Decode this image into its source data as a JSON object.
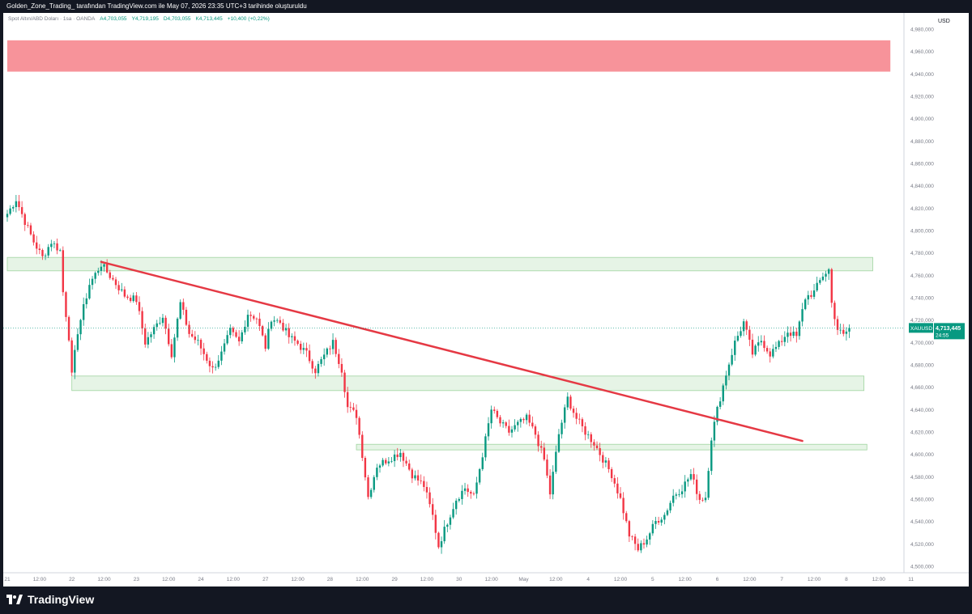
{
  "header": {
    "caption": "Golden_Zone_Trading_ tarafından TradingView.com ile May 07, 2026 23:35 UTC+3 tarihinde oluşturuldu"
  },
  "legend": {
    "symbol": "Spot Altın/ABD Doları · 1sa · OANDA",
    "open": "A4,703,055",
    "high": "Y4,719,195",
    "low": "D4,703,055",
    "close": "K4,713,445",
    "change": "+10,400 (+0,22%)"
  },
  "footer": {
    "brand": "TradingView"
  },
  "colors": {
    "up": "#089981",
    "down": "#f23645",
    "trendline": "#e53944",
    "supply_zone": "#f7939a",
    "demand_zone": "#e6f4e6",
    "demand_zone_border": "#9fd49f",
    "price_tag": "#089981"
  },
  "chart_data": {
    "type": "candlestick",
    "symbol": "XAUUSD",
    "currency": "USD",
    "last_price_label": "4,713,445",
    "countdown_label": "24:55",
    "ylim": [
      4500,
      4990
    ],
    "y_ticks": [
      "4,500,000",
      "4,520,000",
      "4,540,000",
      "4,560,000",
      "4,580,000",
      "4,600,000",
      "4,620,000",
      "4,640,000",
      "4,660,000",
      "4,680,000",
      "4,700,000",
      "4,720,000",
      "4,740,000",
      "4,760,000",
      "4,780,000",
      "4,800,000",
      "4,820,000",
      "4,840,000",
      "4,860,000",
      "4,880,000",
      "4,900,000",
      "4,920,000",
      "4,940,000",
      "4,960,000",
      "4,980,000"
    ],
    "x_ticks": [
      "21",
      "12:00",
      "22",
      "12:00",
      "23",
      "12:00",
      "24",
      "12:00",
      "27",
      "12:00",
      "28",
      "12:00",
      "29",
      "12:00",
      "30",
      "12:00",
      "May",
      "12:00",
      "4",
      "12:00",
      "5",
      "12:00",
      "6",
      "12:00",
      "7",
      "12:00",
      "8",
      "12:00",
      "11"
    ],
    "x_tick_index": [
      0,
      11,
      22,
      33,
      44,
      55,
      66,
      77,
      88,
      99,
      110,
      121,
      132,
      143,
      154,
      165,
      176,
      187,
      198,
      209,
      220,
      231,
      242,
      253,
      264,
      275,
      286,
      297,
      308
    ],
    "close_path": [
      [
        0,
        4815
      ],
      [
        3,
        4828
      ],
      [
        6,
        4808
      ],
      [
        9,
        4790
      ],
      [
        12,
        4776
      ],
      [
        15,
        4790
      ],
      [
        18,
        4782
      ],
      [
        19,
        4745
      ],
      [
        21,
        4705
      ],
      [
        22,
        4670
      ],
      [
        24,
        4710
      ],
      [
        28,
        4752
      ],
      [
        32,
        4770
      ],
      [
        36,
        4756
      ],
      [
        40,
        4742
      ],
      [
        44,
        4738
      ],
      [
        47,
        4700
      ],
      [
        50,
        4712
      ],
      [
        53,
        4724
      ],
      [
        56,
        4690
      ],
      [
        59,
        4735
      ],
      [
        62,
        4708
      ],
      [
        65,
        4700
      ],
      [
        67,
        4690
      ],
      [
        70,
        4676
      ],
      [
        73,
        4690
      ],
      [
        76,
        4710
      ],
      [
        79,
        4700
      ],
      [
        82,
        4726
      ],
      [
        85,
        4722
      ],
      [
        88,
        4696
      ],
      [
        90,
        4722
      ],
      [
        93,
        4718
      ],
      [
        96,
        4705
      ],
      [
        99,
        4699
      ],
      [
        102,
        4690
      ],
      [
        105,
        4675
      ],
      [
        108,
        4688
      ],
      [
        111,
        4700
      ],
      [
        114,
        4676
      ],
      [
        116,
        4642
      ],
      [
        119,
        4635
      ],
      [
        121,
        4600
      ],
      [
        123,
        4562
      ],
      [
        126,
        4590
      ],
      [
        130,
        4596
      ],
      [
        134,
        4602
      ],
      [
        138,
        4582
      ],
      [
        142,
        4572
      ],
      [
        145,
        4545
      ],
      [
        147,
        4518
      ],
      [
        150,
        4540
      ],
      [
        153,
        4560
      ],
      [
        156,
        4570
      ],
      [
        159,
        4562
      ],
      [
        162,
        4600
      ],
      [
        165,
        4640
      ],
      [
        168,
        4628
      ],
      [
        171,
        4620
      ],
      [
        174,
        4627
      ],
      [
        177,
        4632
      ],
      [
        180,
        4618
      ],
      [
        183,
        4595
      ],
      [
        185,
        4565
      ],
      [
        188,
        4618
      ],
      [
        191,
        4650
      ],
      [
        194,
        4632
      ],
      [
        197,
        4620
      ],
      [
        200,
        4610
      ],
      [
        203,
        4596
      ],
      [
        206,
        4582
      ],
      [
        209,
        4560
      ],
      [
        212,
        4528
      ],
      [
        215,
        4515
      ],
      [
        218,
        4525
      ],
      [
        221,
        4540
      ],
      [
        224,
        4546
      ],
      [
        227,
        4563
      ],
      [
        230,
        4570
      ],
      [
        233,
        4582
      ],
      [
        236,
        4560
      ],
      [
        238,
        4562
      ],
      [
        240,
        4615
      ],
      [
        242,
        4640
      ],
      [
        245,
        4672
      ],
      [
        248,
        4700
      ],
      [
        251,
        4718
      ],
      [
        254,
        4690
      ],
      [
        257,
        4702
      ],
      [
        260,
        4690
      ],
      [
        263,
        4698
      ],
      [
        266,
        4710
      ],
      [
        269,
        4705
      ],
      [
        272,
        4740
      ],
      [
        275,
        4745
      ],
      [
        278,
        4760
      ],
      [
        280,
        4765
      ],
      [
        281,
        4735
      ],
      [
        283,
        4712
      ],
      [
        285,
        4706
      ],
      [
        287,
        4713
      ]
    ],
    "zones": [
      {
        "kind": "supply",
        "x0": 0,
        "x1": 301,
        "y0": 4942,
        "y1": 4970
      },
      {
        "kind": "demand",
        "x0": 0,
        "x1": 295,
        "y0": 4764,
        "y1": 4776
      },
      {
        "kind": "demand",
        "x0": 22,
        "x1": 292,
        "y0": 4657,
        "y1": 4670
      },
      {
        "kind": "demand",
        "x0": 119,
        "x1": 293,
        "y0": 4604,
        "y1": 4609
      }
    ],
    "trendline": {
      "x0": 32,
      "y0": 4772,
      "x1": 271,
      "y1": 4612
    }
  }
}
